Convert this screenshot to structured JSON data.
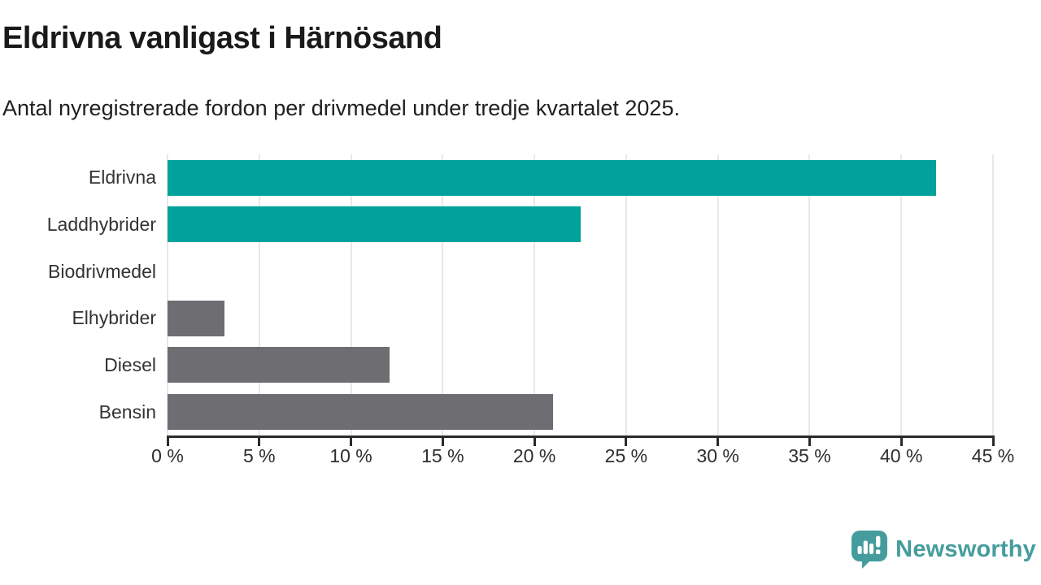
{
  "header": {
    "title": "Eldrivna vanligast i Härnösand",
    "subtitle": "Antal nyregistrerade fordon per drivmedel under tredje kvartalet 2025."
  },
  "chart_data": {
    "type": "bar",
    "orientation": "horizontal",
    "title": "Eldrivna vanligast i Härnösand",
    "subtitle": "Antal nyregistrerade fordon per drivmedel under tredje kvartalet 2025.",
    "categories": [
      "Eldrivna",
      "Laddhybrider",
      "Biodrivmedel",
      "Elhybrider",
      "Diesel",
      "Bensin"
    ],
    "values": [
      41.9,
      22.5,
      0,
      3.1,
      12.1,
      21.0
    ],
    "unit": "%",
    "bar_colors": [
      "#00a29b",
      "#00a29b",
      "#00a29b",
      "#6d6d72",
      "#6d6d72",
      "#6d6d72"
    ],
    "xlim": [
      0,
      45
    ],
    "x_tick_step": 5,
    "x_tick_labels": [
      "0 %",
      "5 %",
      "10 %",
      "15 %",
      "20 %",
      "25 %",
      "30 %",
      "35 %",
      "40 %",
      "45 %"
    ],
    "xlabel": "",
    "ylabel": "",
    "grid": true,
    "legend": false
  },
  "colors": {
    "teal": "#00a29b",
    "gray": "#6d6d72",
    "gridline": "#e8e8e8",
    "axis": "#2b2b2b",
    "logo_teal": "#459c9d"
  },
  "footer": {
    "brand": "Newsworthy"
  }
}
